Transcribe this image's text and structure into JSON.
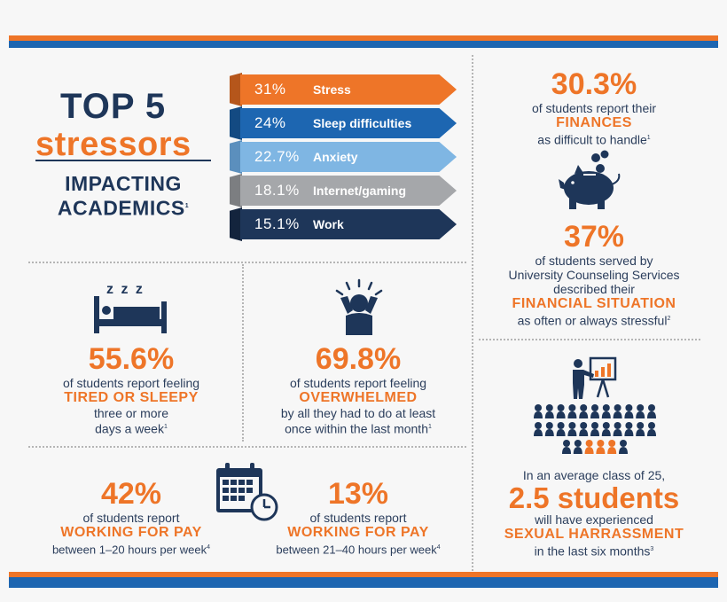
{
  "header": {
    "title_line1": "TOP 5",
    "title_line2": "stressors",
    "title_line3": "IMPACTING",
    "title_line4": "ACADEMICS",
    "title_footnote": "1"
  },
  "stressors": [
    {
      "pct": "31%",
      "label": "Stress",
      "color": "#ee7528"
    },
    {
      "pct": "24%",
      "label": "Sleep difficulties",
      "color": "#1d66b1"
    },
    {
      "pct": "22.7%",
      "label": "Anxiety",
      "color": "#7fb6e3"
    },
    {
      "pct": "18.1%",
      "label": "Internet/gaming",
      "color": "#a5a7aa"
    },
    {
      "pct": "15.1%",
      "label": "Work",
      "color": "#1e3659"
    }
  ],
  "finances": {
    "stat": "30.3%",
    "line1": "of students report their",
    "caption": "FINANCES",
    "line2": "as difficult to handle",
    "footnote": "1"
  },
  "financial_situation": {
    "stat": "37%",
    "line1": "of students served by",
    "line2": "University Counseling Services",
    "line3": "described their",
    "caption": "FINANCIAL SITUATION",
    "line4": "as often or always stressful",
    "footnote": "2"
  },
  "tired": {
    "stat": "55.6%",
    "line1": "of students report feeling",
    "caption": "TIRED OR SLEEPY",
    "line2": "three or more",
    "line3": "days a week",
    "footnote": "1",
    "zzz": "z z z"
  },
  "overwhelmed": {
    "stat": "69.8%",
    "line1": "of students report feeling",
    "caption": "OVERWHELMED",
    "line2": "by all they had to do at least",
    "line3": "once within the last month",
    "footnote": "1"
  },
  "work_1_20": {
    "stat": "42%",
    "line1": "of students report",
    "caption": "WORKING FOR PAY",
    "line2": "between 1–20 hours per week",
    "footnote": "4"
  },
  "work_21_40": {
    "stat": "13%",
    "line1": "of students report",
    "caption": "WORKING FOR PAY",
    "line2": "between 21–40 hours per week",
    "footnote": "4"
  },
  "harassment": {
    "line1": "In an average class of 25,",
    "stat": "2.5 students",
    "line2": "will have experienced",
    "caption": "SEXUAL HARRASSMENT",
    "line3": "in the last six months",
    "footnote": "3"
  },
  "icons": [
    "piggy-bank-icon",
    "bed-icon",
    "overwhelmed-person-icon",
    "calendar-clock-icon",
    "presenter-icon",
    "audience-icon"
  ],
  "colors": {
    "orange": "#ee7528",
    "blue": "#1d66b1",
    "navy": "#1e3659",
    "light_blue": "#7fb6e3",
    "gray": "#a5a7aa"
  }
}
